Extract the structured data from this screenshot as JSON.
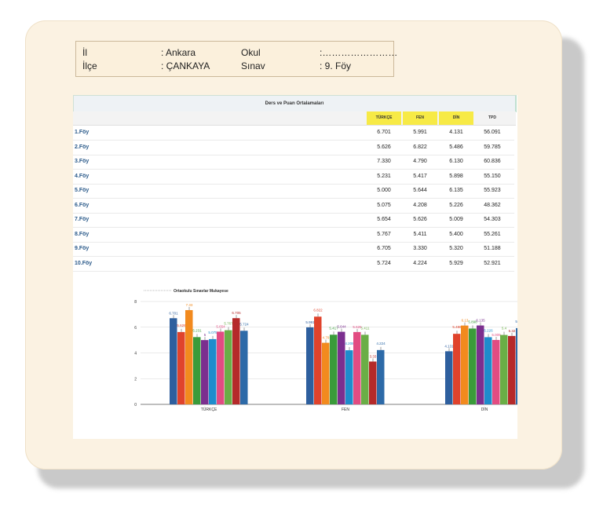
{
  "info": {
    "il_label": "İl",
    "il_value": ": Ankara",
    "ilce_label": "İlçe",
    "ilce_value": ": ÇANKAYA",
    "okul_label": "Okul",
    "okul_value": ":……………………",
    "sinav_label": "Sınav",
    "sinav_value": ": 9. Föy"
  },
  "table": {
    "title": "Ders ve Puan Ortalamaları",
    "headers": [
      "TÜRKÇE",
      "FEN",
      "DİN",
      "TPD"
    ],
    "rows": [
      {
        "name": "1.Föy",
        "values": [
          "6.701",
          "5.991",
          "4.131",
          "56.091"
        ]
      },
      {
        "name": "2.Föy",
        "values": [
          "5.626",
          "6.822",
          "5.486",
          "59.785"
        ]
      },
      {
        "name": "3.Föy",
        "values": [
          "7.330",
          "4.790",
          "6.130",
          "60.836"
        ]
      },
      {
        "name": "4.Föy",
        "values": [
          "5.231",
          "5.417",
          "5.898",
          "55.150"
        ]
      },
      {
        "name": "5.Föy",
        "values": [
          "5.000",
          "5.644",
          "6.135",
          "55.923"
        ]
      },
      {
        "name": "6.Föy",
        "values": [
          "5.075",
          "4.208",
          "5.226",
          "48.362"
        ]
      },
      {
        "name": "7.Föy",
        "values": [
          "5.654",
          "5.626",
          "5.009",
          "54.303"
        ]
      },
      {
        "name": "8.Föy",
        "values": [
          "5.767",
          "5.411",
          "5.400",
          "55.261"
        ]
      },
      {
        "name": "9.Föy",
        "values": [
          "6.705",
          "3.330",
          "5.320",
          "51.188"
        ]
      },
      {
        "name": "10.Föy",
        "values": [
          "5.724",
          "4.224",
          "5.929",
          "52.921"
        ]
      }
    ]
  },
  "chart_data": {
    "type": "bar",
    "title": "Ortaokulu Sınavlar Mukayese",
    "categories": [
      "TÜRKÇE",
      "FEN",
      "DİN"
    ],
    "ylim": [
      0,
      8
    ],
    "yticks": [
      0,
      2,
      4,
      6,
      8
    ],
    "grid": true,
    "colors": [
      "#2e5f9e",
      "#e0432c",
      "#f28a1e",
      "#3a9b3a",
      "#7b2f8f",
      "#1e8ccc",
      "#e24c82",
      "#6aae46",
      "#b52a2a",
      "#2d6aa8"
    ],
    "label_colors": [
      "#2e5f9e",
      "#e0432c",
      "#f28a1e",
      "#3a9b3a",
      "#7b2f8f",
      "#1e8ccc",
      "#e24c82",
      "#6aae46",
      "#b52a2a",
      "#2d6aa8"
    ],
    "series": [
      {
        "values": [
          6.701,
          5.991,
          4.131
        ]
      },
      {
        "values": [
          5.626,
          6.822,
          5.486
        ]
      },
      {
        "values": [
          7.33,
          4.79,
          6.13
        ]
      },
      {
        "values": [
          5.231,
          5.417,
          5.898
        ]
      },
      {
        "values": [
          5.0,
          5.644,
          6.135
        ]
      },
      {
        "values": [
          5.075,
          4.208,
          5.226
        ]
      },
      {
        "values": [
          5.654,
          5.626,
          5.009
        ]
      },
      {
        "values": [
          5.767,
          5.411,
          5.4
        ]
      },
      {
        "values": [
          6.705,
          3.33,
          5.32
        ]
      },
      {
        "values": [
          5.724,
          4.224,
          5.929
        ]
      }
    ]
  }
}
